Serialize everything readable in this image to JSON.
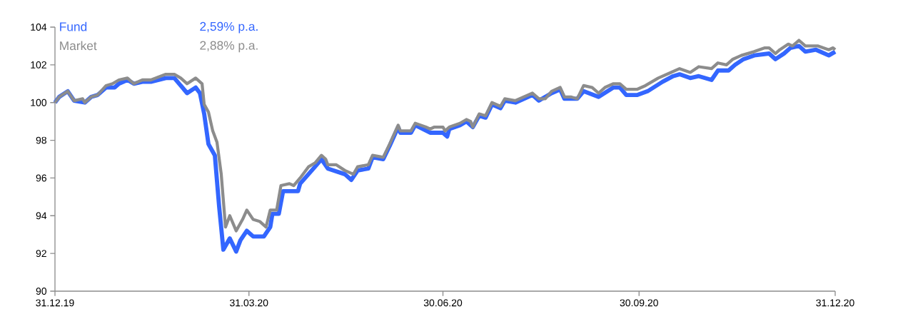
{
  "chart_data": {
    "type": "line",
    "xlim": [
      "2019-12-31",
      "2020-12-31"
    ],
    "xticks": [
      {
        "value": "2019-12-31",
        "label": "31.12.19"
      },
      {
        "value": "2020-03-31",
        "label": "31.03.20"
      },
      {
        "value": "2020-06-30",
        "label": "30.06.20"
      },
      {
        "value": "2020-09-30",
        "label": "30.09.20"
      },
      {
        "value": "2020-12-31",
        "label": "31.12.20"
      }
    ],
    "ylim": [
      90,
      104
    ],
    "yticks": [
      90,
      92,
      94,
      96,
      98,
      100,
      102,
      104
    ],
    "grid": false,
    "legend": "top left",
    "marker": "none",
    "line_style": "solid",
    "annotations": [
      "2,59% p.a.",
      "2,88% p.a."
    ],
    "series": [
      {
        "name": "Fund",
        "color": "#3366ff",
        "x": [
          "2019-12-31",
          "2020-01-02",
          "2020-01-06",
          "2020-01-09",
          "2020-01-14",
          "2020-01-17",
          "2020-01-20",
          "2020-01-24",
          "2020-01-28",
          "2020-01-30",
          "2020-02-03",
          "2020-02-06",
          "2020-02-10",
          "2020-02-14",
          "2020-02-21",
          "2020-02-24",
          "2020-02-25",
          "2020-03-02",
          "2020-03-06",
          "2020-03-08",
          "2020-03-10",
          "2020-03-12",
          "2020-03-15",
          "2020-03-17",
          "2020-03-19",
          "2020-03-22",
          "2020-03-25",
          "2020-03-27",
          "2020-03-30",
          "2020-04-02",
          "2020-04-07",
          "2020-04-10",
          "2020-04-11",
          "2020-04-14",
          "2020-04-16",
          "2020-04-23",
          "2020-04-24",
          "2020-05-01",
          "2020-05-04",
          "2020-05-07",
          "2020-05-15",
          "2020-05-18",
          "2020-05-21",
          "2020-05-26",
          "2020-05-28",
          "2020-06-02",
          "2020-06-05",
          "2020-06-09",
          "2020-06-10",
          "2020-06-15",
          "2020-06-17",
          "2020-06-24",
          "2020-06-30",
          "2020-07-02",
          "2020-07-03",
          "2020-07-08",
          "2020-07-11",
          "2020-07-14",
          "2020-07-17",
          "2020-07-20",
          "2020-07-23",
          "2020-07-27",
          "2020-07-29",
          "2020-08-03",
          "2020-08-07",
          "2020-08-11",
          "2020-08-14",
          "2020-08-20",
          "2020-08-24",
          "2020-08-26",
          "2020-08-29",
          "2020-09-01",
          "2020-09-04",
          "2020-09-11",
          "2020-09-18",
          "2020-09-21",
          "2020-09-24",
          "2020-09-29",
          "2020-10-04",
          "2020-10-11",
          "2020-10-16",
          "2020-10-19",
          "2020-10-24",
          "2020-10-28",
          "2020-11-03",
          "2020-11-06",
          "2020-11-11",
          "2020-11-14",
          "2020-11-18",
          "2020-11-23",
          "2020-11-30",
          "2020-12-03",
          "2020-12-07",
          "2020-12-10",
          "2020-12-14",
          "2020-12-17",
          "2020-12-22",
          "2020-12-28",
          "2020-12-31"
        ],
        "values": [
          100.0,
          100.3,
          100.6,
          100.1,
          100.0,
          100.3,
          100.4,
          100.8,
          100.8,
          101.0,
          101.2,
          101.0,
          101.1,
          101.1,
          101.3,
          101.3,
          101.3,
          100.5,
          100.8,
          100.5,
          99.4,
          97.8,
          97.2,
          94.5,
          92.2,
          92.8,
          92.1,
          92.7,
          93.2,
          92.9,
          92.9,
          93.4,
          94.1,
          94.1,
          95.3,
          95.3,
          95.7,
          96.6,
          97.0,
          96.5,
          96.2,
          95.9,
          96.4,
          96.5,
          97.1,
          97.0,
          97.7,
          98.7,
          98.4,
          98.4,
          98.8,
          98.4,
          98.4,
          98.2,
          98.6,
          98.8,
          99.0,
          98.7,
          99.3,
          99.2,
          99.9,
          99.7,
          100.1,
          100.0,
          100.2,
          100.4,
          100.1,
          100.5,
          100.7,
          100.2,
          100.2,
          100.2,
          100.6,
          100.3,
          100.8,
          100.8,
          100.4,
          100.4,
          100.6,
          101.1,
          101.4,
          101.5,
          101.3,
          101.4,
          101.2,
          101.7,
          101.7,
          102.0,
          102.3,
          102.5,
          102.6,
          102.3,
          102.6,
          102.9,
          103.0,
          102.7,
          102.8,
          102.5,
          102.7
        ]
      },
      {
        "name": "Market",
        "color": "#8c8c8c",
        "x": [
          "2019-12-31",
          "2020-01-02",
          "2020-01-06",
          "2020-01-09",
          "2020-01-13",
          "2020-01-14",
          "2020-01-17",
          "2020-01-20",
          "2020-01-24",
          "2020-01-27",
          "2020-01-30",
          "2020-02-03",
          "2020-02-06",
          "2020-02-10",
          "2020-02-14",
          "2020-02-21",
          "2020-02-25",
          "2020-02-28",
          "2020-03-02",
          "2020-03-06",
          "2020-03-09",
          "2020-03-10",
          "2020-03-12",
          "2020-03-14",
          "2020-03-16",
          "2020-03-18",
          "2020-03-20",
          "2020-03-22",
          "2020-03-25",
          "2020-03-28",
          "2020-03-30",
          "2020-04-02",
          "2020-04-05",
          "2020-04-08",
          "2020-04-10",
          "2020-04-13",
          "2020-04-15",
          "2020-04-19",
          "2020-04-21",
          "2020-04-24",
          "2020-04-28",
          "2020-05-01",
          "2020-05-04",
          "2020-05-06",
          "2020-05-07",
          "2020-05-11",
          "2020-05-15",
          "2020-05-19",
          "2020-05-21",
          "2020-05-26",
          "2020-05-28",
          "2020-06-02",
          "2020-06-05",
          "2020-06-09",
          "2020-06-10",
          "2020-06-15",
          "2020-06-17",
          "2020-06-22",
          "2020-06-24",
          "2020-06-26",
          "2020-06-30",
          "2020-07-01",
          "2020-07-03",
          "2020-07-08",
          "2020-07-11",
          "2020-07-13",
          "2020-07-14",
          "2020-07-17",
          "2020-07-20",
          "2020-07-23",
          "2020-07-27",
          "2020-07-29",
          "2020-08-03",
          "2020-08-07",
          "2020-08-11",
          "2020-08-14",
          "2020-08-17",
          "2020-08-20",
          "2020-08-24",
          "2020-08-26",
          "2020-08-29",
          "2020-09-01",
          "2020-09-04",
          "2020-09-08",
          "2020-09-11",
          "2020-09-14",
          "2020-09-18",
          "2020-09-21",
          "2020-09-24",
          "2020-09-29",
          "2020-10-03",
          "2020-10-06",
          "2020-10-09",
          "2020-10-15",
          "2020-10-19",
          "2020-10-24",
          "2020-10-28",
          "2020-11-03",
          "2020-11-06",
          "2020-11-10",
          "2020-11-13",
          "2020-11-17",
          "2020-11-23",
          "2020-11-28",
          "2020-11-30",
          "2020-12-03",
          "2020-12-05",
          "2020-12-09",
          "2020-12-11",
          "2020-12-14",
          "2020-12-17",
          "2020-12-23",
          "2020-12-28",
          "2020-12-30",
          "2020-12-31"
        ],
        "values": [
          100.0,
          100.3,
          100.6,
          100.1,
          100.2,
          100.0,
          100.3,
          100.4,
          100.9,
          101.0,
          101.2,
          101.3,
          101.0,
          101.2,
          101.2,
          101.5,
          101.5,
          101.3,
          101.0,
          101.3,
          101.0,
          99.9,
          99.5,
          98.5,
          97.9,
          96.2,
          93.4,
          94.0,
          93.2,
          93.8,
          94.3,
          93.8,
          93.7,
          93.4,
          94.3,
          94.3,
          95.6,
          95.7,
          95.6,
          96.0,
          96.6,
          96.8,
          97.2,
          97.0,
          96.7,
          96.7,
          96.4,
          96.2,
          96.6,
          96.7,
          97.2,
          97.1,
          97.8,
          98.8,
          98.5,
          98.5,
          98.9,
          98.7,
          98.6,
          98.7,
          98.7,
          98.5,
          98.7,
          98.9,
          99.1,
          99.0,
          98.7,
          99.4,
          99.3,
          100.0,
          99.8,
          100.2,
          100.1,
          100.3,
          100.5,
          100.2,
          100.2,
          100.6,
          100.8,
          100.3,
          100.3,
          100.2,
          100.9,
          100.8,
          100.5,
          100.8,
          101.0,
          101.0,
          100.7,
          100.7,
          100.9,
          101.1,
          101.3,
          101.6,
          101.8,
          101.6,
          101.9,
          101.8,
          102.1,
          102.0,
          102.3,
          102.5,
          102.7,
          102.9,
          102.9,
          102.6,
          102.8,
          103.1,
          103.0,
          103.3,
          103.0,
          103.0,
          102.8,
          102.9,
          102.8
        ]
      }
    ]
  }
}
